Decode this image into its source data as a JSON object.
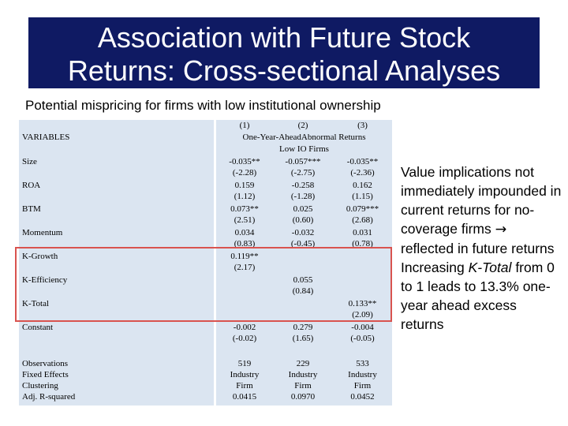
{
  "title": {
    "line1": "Association with Future Stock",
    "line2": "Returns: Cross-sectional Analyses"
  },
  "subtitle": "Potential mispricing for firms with low institutional ownership",
  "table": {
    "column_numbers": [
      "(1)",
      "(2)",
      "(3)"
    ],
    "dependent_variable": "One-Year-AheadAbnormal Returns",
    "sample": "Low IO Firms",
    "variables_header": "VARIABLES",
    "rows": [
      {
        "label": "Size",
        "c1": [
          "-0.035**",
          "(-2.28)"
        ],
        "c2": [
          "-0.057***",
          "(-2.75)"
        ],
        "c3": [
          "-0.035**",
          "(-2.36)"
        ]
      },
      {
        "label": "ROA",
        "c1": [
          "0.159",
          "(1.12)"
        ],
        "c2": [
          "-0.258",
          "(-1.28)"
        ],
        "c3": [
          "0.162",
          "(1.15)"
        ]
      },
      {
        "label": "BTM",
        "c1": [
          "0.073**",
          "(2.51)"
        ],
        "c2": [
          "0.025",
          "(0.60)"
        ],
        "c3": [
          "0.079***",
          "(2.68)"
        ]
      },
      {
        "label": "Momentum",
        "c1": [
          "0.034",
          "(0.83)"
        ],
        "c2": [
          "-0.032",
          "(-0.45)"
        ],
        "c3": [
          "0.031",
          "(0.78)"
        ]
      },
      {
        "label": "K-Growth",
        "c1": [
          "0.119**",
          "(2.17)"
        ],
        "c2": [
          "",
          ""
        ],
        "c3": [
          "",
          ""
        ]
      },
      {
        "label": "K-Efficiency",
        "c1": [
          "",
          ""
        ],
        "c2": [
          "0.055",
          "(0.84)"
        ],
        "c3": [
          "",
          ""
        ]
      },
      {
        "label": "K-Total",
        "c1": [
          "",
          ""
        ],
        "c2": [
          "",
          ""
        ],
        "c3": [
          "0.133**",
          "(2.09)"
        ]
      },
      {
        "label": "Constant",
        "c1": [
          "-0.002",
          "(-0.02)"
        ],
        "c2": [
          "0.279",
          "(1.65)"
        ],
        "c3": [
          "-0.004",
          "(-0.05)"
        ]
      }
    ],
    "footer_labels": [
      "Observations",
      "Fixed Effects",
      "Clustering",
      "Adj. R-squared"
    ],
    "footer_values": {
      "c1": [
        "519",
        "Industry",
        "Firm",
        "0.0415"
      ],
      "c2": [
        "229",
        "Industry",
        "Firm",
        "0.0970"
      ],
      "c3": [
        "533",
        "Industry",
        "Firm",
        "0.0452"
      ]
    }
  },
  "side_text": {
    "part1": "Value implications not immediately impounded in current returns for no-coverage firms",
    "arrow": "→",
    "part2": "reflected in future returns",
    "part3_a": "Increasing",
    "part3_emph": "K-Total",
    "part3_b": "from 0 to 1 leads to 13.3% one-year ahead excess returns"
  },
  "colors": {
    "title_bg": "#0f1a63",
    "table_bg": "#dbe5f1",
    "highlight_box": "#d9534f"
  }
}
